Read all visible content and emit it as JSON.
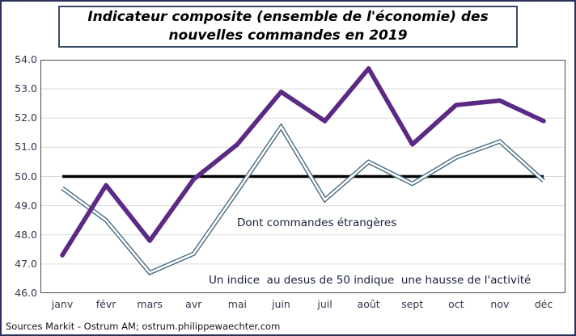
{
  "title": {
    "line1": "Indicateur composite (ensemble de l'économie) des",
    "line2": "nouvelles commandes en 2019"
  },
  "annotations": {
    "foreign": "Dont commandes étrangères",
    "threshold": "Un indice  au desus de 50 indique  une hausse de l'activité"
  },
  "source": "Sources Markit - Ostrum AM; ostrum.philippewaechter.com",
  "chart_data": {
    "type": "line",
    "title": "Indicateur composite (ensemble de l'économie) des nouvelles commandes en 2019",
    "categories": [
      "janv",
      "févr",
      "mars",
      "avr",
      "mai",
      "juin",
      "juil",
      "août",
      "sept",
      "oct",
      "nov",
      "déc"
    ],
    "series": [
      {
        "name": "Indicateur composite (ensemble de l'économie) des nouvelles commandes",
        "style": "thick",
        "color": "#5B2A84",
        "values": [
          47.3,
          49.7,
          47.8,
          49.9,
          51.1,
          52.9,
          51.9,
          53.7,
          51.1,
          52.45,
          52.6,
          51.9
        ]
      },
      {
        "name": "Dont commandes étrangères",
        "style": "double",
        "color": "#476A80",
        "values": [
          49.6,
          48.5,
          46.7,
          47.35,
          49.5,
          51.7,
          49.2,
          50.5,
          49.75,
          50.65,
          51.2,
          49.85
        ]
      }
    ],
    "reference_line": {
      "value": 50,
      "color": "#000000"
    },
    "ylim": [
      46,
      54
    ],
    "ytick_step": 1,
    "ytick_decimals": 1,
    "xlabel": "",
    "ylabel": "",
    "grid": true,
    "legend": "none",
    "colors": {
      "grid": "#D9D9D9",
      "plot_border": "#4A4A4A"
    }
  }
}
